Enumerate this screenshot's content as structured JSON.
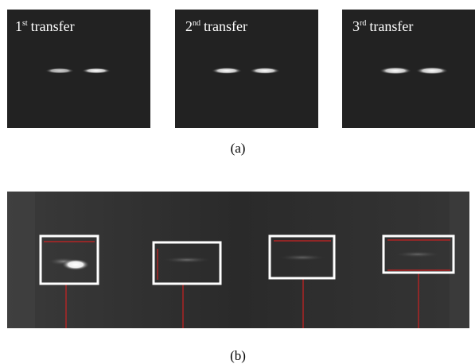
{
  "panel_a": {
    "images": [
      {
        "number": "1",
        "suffix": "st",
        "label": "transfer"
      },
      {
        "number": "2",
        "suffix": "nd",
        "label": "transfer"
      },
      {
        "number": "3",
        "suffix": "rd",
        "label": "transfer"
      }
    ],
    "caption": "(a)"
  },
  "panel_b": {
    "caption": "(b)"
  }
}
